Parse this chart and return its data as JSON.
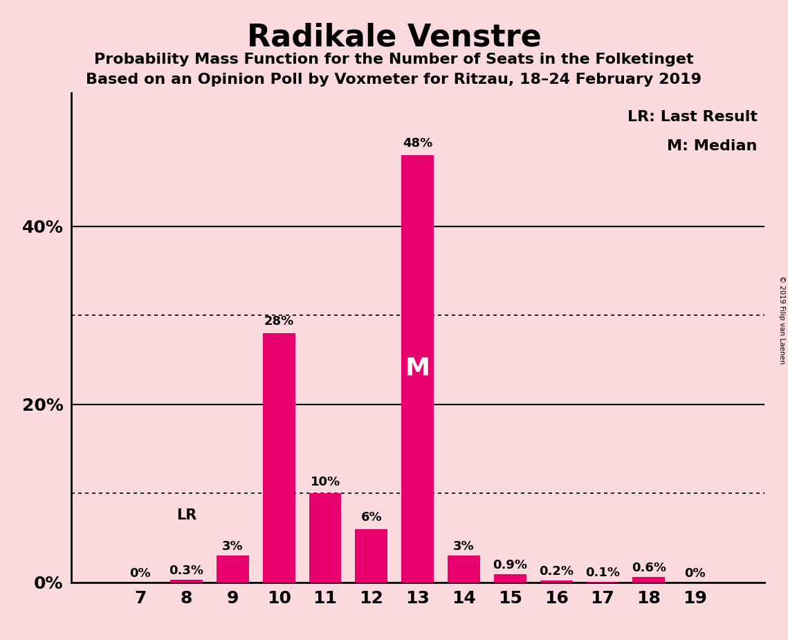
{
  "title": "Radikale Venstre",
  "subtitle1": "Probability Mass Function for the Number of Seats in the Folketinget",
  "subtitle2": "Based on an Opinion Poll by Voxmeter for Ritzau, 18–24 February 2019",
  "categories": [
    7,
    8,
    9,
    10,
    11,
    12,
    13,
    14,
    15,
    16,
    17,
    18,
    19
  ],
  "values": [
    0.0,
    0.3,
    3.0,
    28.0,
    10.0,
    6.0,
    48.0,
    3.0,
    0.9,
    0.2,
    0.1,
    0.6,
    0.0
  ],
  "labels": [
    "0%",
    "0.3%",
    "3%",
    "28%",
    "10%",
    "6%",
    "48%",
    "3%",
    "0.9%",
    "0.2%",
    "0.1%",
    "0.6%",
    "0%"
  ],
  "bar_color": "#E8006E",
  "background_color": "#FADADD",
  "median_seat": 13,
  "lr_seat": 8,
  "legend_lr": "LR: Last Result",
  "legend_m": "M: Median",
  "copyright": "© 2019 Filip van Laenen",
  "ylim": [
    0,
    55
  ],
  "dotted_lines": [
    10,
    30
  ],
  "solid_lines": [
    20,
    40
  ],
  "ytick_positions": [
    0,
    20,
    40
  ],
  "ytick_labels": [
    "0%",
    "20%",
    "40%"
  ]
}
